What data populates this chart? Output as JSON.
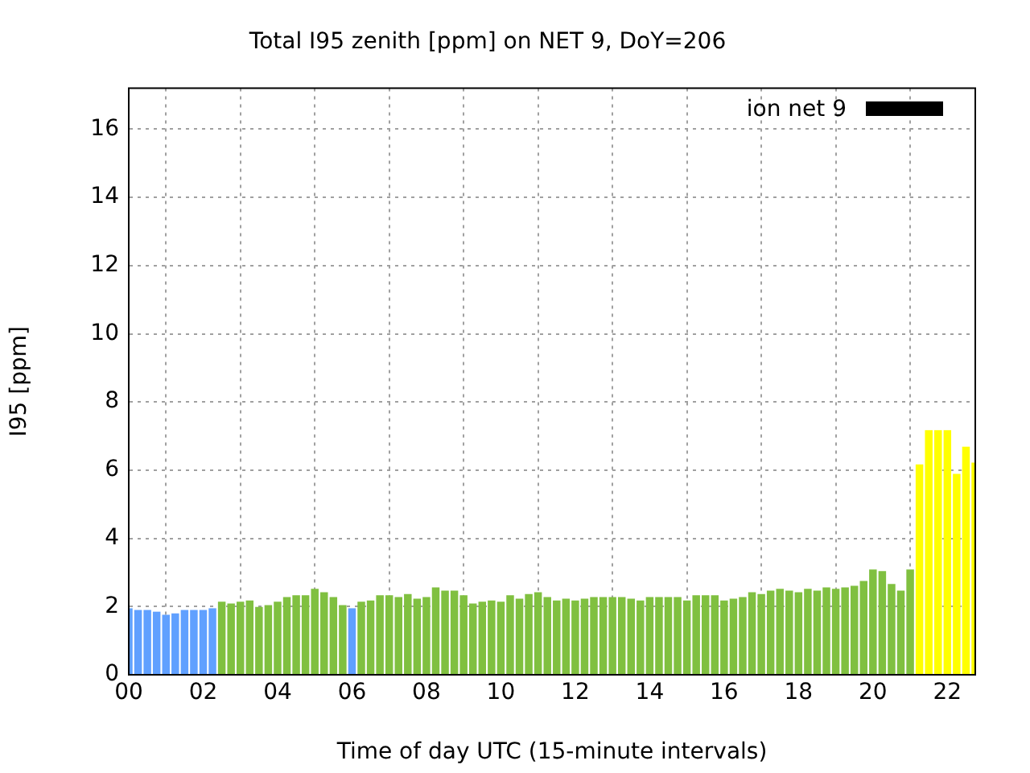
{
  "chart_data": {
    "type": "bar",
    "title": "Total I95 zenith [ppm] on NET 9, DoY=206",
    "xlabel": "Time of day UTC (15-minute intervals)",
    "ylabel": "I95 [ppm]",
    "x": [
      0,
      0.25,
      0.5,
      0.75,
      1,
      1.25,
      1.5,
      1.75,
      2,
      2.25,
      2.5,
      2.75,
      3,
      3.25,
      3.5,
      3.75,
      4,
      4.25,
      4.5,
      4.75,
      5,
      5.25,
      5.5,
      5.75,
      6,
      6.25,
      6.5,
      6.75,
      7,
      7.25,
      7.5,
      7.75,
      8,
      8.25,
      8.5,
      8.75,
      9,
      9.25,
      9.5,
      9.75,
      10,
      10.25,
      10.5,
      10.75,
      11,
      11.25,
      11.5,
      11.75,
      12,
      12.25,
      12.5,
      12.75,
      13,
      13.25,
      13.5,
      13.75,
      14,
      14.25,
      14.5,
      14.75,
      15,
      15.25,
      15.5,
      15.75,
      16,
      16.25,
      16.5,
      16.75,
      17,
      17.25,
      17.5,
      17.75,
      18,
      18.25,
      18.5,
      18.75,
      19,
      19.25,
      19.5,
      19.75,
      20,
      20.25,
      20.5,
      20.75,
      21,
      21.25,
      21.5,
      21.75,
      22,
      22.25,
      22.5,
      22.75
    ],
    "series": [
      {
        "name": "ion net 9",
        "color": "#000000",
        "colors": [
          "#60a0ff",
          "#60a0ff",
          "#60a0ff",
          "#60a0ff",
          "#60a0ff",
          "#60a0ff",
          "#60a0ff",
          "#60a0ff",
          "#60a0ff",
          "#60a0ff",
          "#80c040",
          "#80c040",
          "#80c040",
          "#80c040",
          "#80c040",
          "#80c040",
          "#80c040",
          "#80c040",
          "#80c040",
          "#80c040",
          "#80c040",
          "#80c040",
          "#80c040",
          "#80c040",
          "#60a0ff",
          "#80c040",
          "#80c040",
          "#80c040",
          "#80c040",
          "#80c040",
          "#80c040",
          "#80c040",
          "#80c040",
          "#80c040",
          "#80c040",
          "#80c040",
          "#80c040",
          "#80c040",
          "#80c040",
          "#80c040",
          "#80c040",
          "#80c040",
          "#80c040",
          "#80c040",
          "#80c040",
          "#80c040",
          "#80c040",
          "#80c040",
          "#80c040",
          "#80c040",
          "#80c040",
          "#80c040",
          "#80c040",
          "#80c040",
          "#80c040",
          "#80c040",
          "#80c040",
          "#80c040",
          "#80c040",
          "#80c040",
          "#80c040",
          "#80c040",
          "#80c040",
          "#80c040",
          "#80c040",
          "#80c040",
          "#80c040",
          "#80c040",
          "#80c040",
          "#80c040",
          "#80c040",
          "#80c040",
          "#80c040",
          "#80c040",
          "#80c040",
          "#80c040",
          "#80c040",
          "#80c040",
          "#80c040",
          "#80c040",
          "#80c040",
          "#80c040",
          "#80c040",
          "#80c040",
          "#80c040",
          "#ffff00",
          "#ffff00",
          "#ffff00",
          "#ffff00",
          "#ffff00",
          "#ffff00",
          "#ffff00"
        ],
        "values": [
          1.95,
          1.9,
          1.9,
          1.85,
          1.76,
          1.8,
          1.9,
          1.9,
          1.9,
          1.95,
          2.14,
          2.09,
          2.14,
          2.18,
          1.99,
          2.04,
          2.14,
          2.28,
          2.33,
          2.33,
          2.52,
          2.42,
          2.28,
          2.04,
          1.95,
          2.14,
          2.18,
          2.33,
          2.33,
          2.28,
          2.37,
          2.23,
          2.28,
          2.56,
          2.47,
          2.47,
          2.33,
          2.09,
          2.14,
          2.18,
          2.14,
          2.33,
          2.23,
          2.37,
          2.42,
          2.28,
          2.18,
          2.23,
          2.18,
          2.23,
          2.28,
          2.28,
          2.28,
          2.28,
          2.23,
          2.18,
          2.28,
          2.28,
          2.28,
          2.28,
          2.18,
          2.33,
          2.33,
          2.33,
          2.18,
          2.23,
          2.28,
          2.42,
          2.37,
          2.47,
          2.52,
          2.47,
          2.42,
          2.52,
          2.47,
          2.56,
          2.52,
          2.56,
          2.61,
          2.75,
          3.09,
          3.04,
          2.66,
          2.47,
          3.09,
          6.17,
          7.17,
          7.17,
          7.17,
          5.89,
          6.69,
          6.22
        ]
      }
    ],
    "xlim": [
      0,
      22.75
    ],
    "xticks": [
      {
        "value": 0,
        "label": "00"
      },
      {
        "value": 2,
        "label": "02"
      },
      {
        "value": 4,
        "label": "04"
      },
      {
        "value": 6,
        "label": "06"
      },
      {
        "value": 8,
        "label": "08"
      },
      {
        "value": 10,
        "label": "10"
      },
      {
        "value": 12,
        "label": "12"
      },
      {
        "value": 14,
        "label": "14"
      },
      {
        "value": 16,
        "label": "16"
      },
      {
        "value": 18,
        "label": "18"
      },
      {
        "value": 20,
        "label": "20"
      },
      {
        "value": 22,
        "label": "22"
      }
    ],
    "ylim": [
      0,
      17.2
    ],
    "yticks": [
      0,
      2,
      4,
      6,
      8,
      10,
      12,
      14,
      16
    ],
    "grid": true,
    "legend": "top right"
  }
}
